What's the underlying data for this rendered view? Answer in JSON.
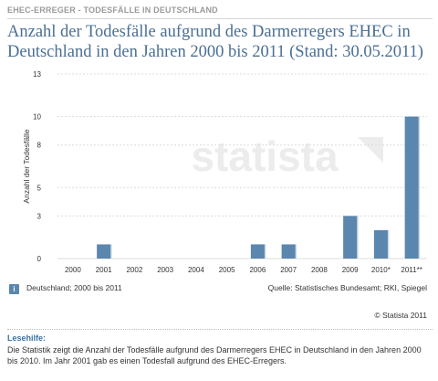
{
  "header": {
    "category": "EHEC-ERREGER - TODESFÄLLE IN DEUTSCHLAND",
    "title": "Anzahl der Todesfälle aufgrund des Darmerregers EHEC in Deutschland in den Jahren 2000 bis 2011 (Stand: 30.05.2011)"
  },
  "chart_data": {
    "type": "bar",
    "categories": [
      "2000",
      "2001",
      "2002",
      "2003",
      "2004",
      "2005",
      "2006",
      "2007",
      "2008",
      "2009",
      "2010*",
      "2011**"
    ],
    "values": [
      0,
      1,
      0,
      0,
      0,
      0,
      1,
      1,
      0,
      3,
      2,
      10
    ],
    "ylabel": "Anzahl der Todesfälle",
    "yticks": [
      0,
      3,
      5,
      8,
      10,
      13
    ],
    "ylim": [
      0,
      13
    ],
    "grid": true,
    "bar_color": "#5b86ad",
    "watermark": "statista"
  },
  "footer": {
    "info_icon": "info-icon",
    "info_text": "Deutschland; 2000 bis 2011",
    "source": "Quelle: Statistisches Bundesamt; RKI, Spiegel",
    "copyright": "© Statista 2011"
  },
  "reading_aid": {
    "heading": "Lesehilfe:",
    "text": "Die Statistik zeigt die Anzahl der Todesfälle aufgrund des Darmerregers EHEC in Deutschland in den Jahren 2000 bis 2010. Im Jahr 2001 gab es einen Todesfall aufgrund des EHEC-Erregers."
  }
}
